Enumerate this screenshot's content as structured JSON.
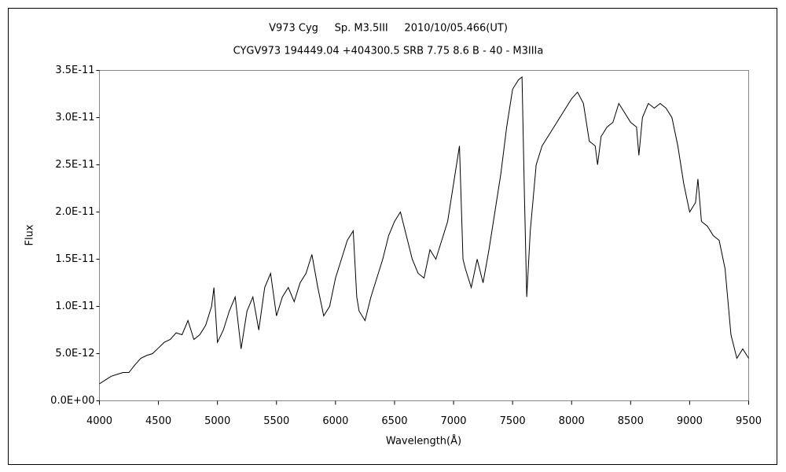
{
  "chart_data": {
    "type": "line",
    "title": "V973 Cyg     Sp. M3.5III     2010/10/05.466(UT)",
    "subtitle": "CYGV973 194449.04 +404300.5 SRB 7.75 8.6 B - 40 - M3IIIa",
    "x_label": "Wavelength(Å)",
    "y_label": "Flux",
    "xlim": [
      4000,
      9500
    ],
    "xticks": [
      4000,
      4500,
      5000,
      5500,
      6000,
      6500,
      7000,
      7500,
      8000,
      8500,
      9000,
      9500
    ],
    "ylim": [
      0,
      3.5e-11
    ],
    "yticks": [
      {
        "value": 0,
        "label": "0.0E+00"
      },
      {
        "value": 5e-12,
        "label": "5.0E-12"
      },
      {
        "value": 1e-11,
        "label": "1.0E-11"
      },
      {
        "value": 1.5e-11,
        "label": "1.5E-11"
      },
      {
        "value": 2e-11,
        "label": "2.0E-11"
      },
      {
        "value": 2.5e-11,
        "label": "2.5E-11"
      },
      {
        "value": 3e-11,
        "label": "3.0E-11"
      },
      {
        "value": 3.5e-11,
        "label": "3.5E-11"
      }
    ],
    "grid": false,
    "series": [
      {
        "color": "#000000",
        "x": [
          4000,
          4050,
          4100,
          4150,
          4200,
          4250,
          4300,
          4350,
          4400,
          4450,
          4500,
          4550,
          4600,
          4650,
          4700,
          4750,
          4800,
          4850,
          4900,
          4950,
          4970,
          5000,
          5050,
          5100,
          5150,
          5200,
          5250,
          5300,
          5350,
          5400,
          5450,
          5500,
          5550,
          5600,
          5650,
          5700,
          5750,
          5800,
          5850,
          5900,
          5950,
          6000,
          6050,
          6100,
          6150,
          6180,
          6200,
          6250,
          6300,
          6350,
          6400,
          6450,
          6500,
          6550,
          6600,
          6650,
          6700,
          6750,
          6800,
          6850,
          6900,
          6950,
          7000,
          7050,
          7080,
          7100,
          7150,
          7200,
          7250,
          7300,
          7350,
          7400,
          7450,
          7500,
          7550,
          7580,
          7600,
          7620,
          7650,
          7700,
          7750,
          7800,
          7850,
          7900,
          7950,
          8000,
          8050,
          8100,
          8150,
          8200,
          8220,
          8250,
          8300,
          8350,
          8400,
          8450,
          8500,
          8550,
          8570,
          8600,
          8650,
          8700,
          8750,
          8800,
          8850,
          8900,
          8950,
          9000,
          9050,
          9070,
          9100,
          9150,
          9200,
          9250,
          9300,
          9350,
          9400,
          9450,
          9500
        ],
        "values": [
          1.8e-12,
          2.2e-12,
          2.6e-12,
          2.8e-12,
          3e-12,
          3e-12,
          3.8e-12,
          4.5e-12,
          4.8e-12,
          5e-12,
          5.6e-12,
          6.2e-12,
          6.5e-12,
          7.2e-12,
          7e-12,
          8.5e-12,
          6.5e-12,
          7e-12,
          8e-12,
          1e-11,
          1.2e-11,
          6.2e-12,
          7.5e-12,
          9.5e-12,
          1.1e-11,
          5.5e-12,
          9.5e-12,
          1.1e-11,
          7.5e-12,
          1.2e-11,
          1.35e-11,
          9e-12,
          1.1e-11,
          1.2e-11,
          1.05e-11,
          1.25e-11,
          1.35e-11,
          1.55e-11,
          1.2e-11,
          9e-12,
          1e-11,
          1.3e-11,
          1.5e-11,
          1.7e-11,
          1.8e-11,
          1.1e-11,
          9.5e-12,
          8.5e-12,
          1.1e-11,
          1.3e-11,
          1.5e-11,
          1.75e-11,
          1.9e-11,
          2e-11,
          1.75e-11,
          1.5e-11,
          1.35e-11,
          1.3e-11,
          1.6e-11,
          1.5e-11,
          1.7e-11,
          1.9e-11,
          2.3e-11,
          2.7e-11,
          1.5e-11,
          1.4e-11,
          1.2e-11,
          1.5e-11,
          1.25e-11,
          1.6e-11,
          2e-11,
          2.4e-11,
          2.9e-11,
          3.3e-11,
          3.4e-11,
          3.43e-11,
          2.2e-11,
          1.1e-11,
          1.8e-11,
          2.5e-11,
          2.7e-11,
          2.8e-11,
          2.9e-11,
          3e-11,
          3.1e-11,
          3.2e-11,
          3.27e-11,
          3.15e-11,
          2.75e-11,
          2.7e-11,
          2.5e-11,
          2.8e-11,
          2.9e-11,
          2.95e-11,
          3.15e-11,
          3.05e-11,
          2.95e-11,
          2.9e-11,
          2.6e-11,
          3e-11,
          3.15e-11,
          3.1e-11,
          3.15e-11,
          3.1e-11,
          3e-11,
          2.7e-11,
          2.3e-11,
          2e-11,
          2.1e-11,
          2.35e-11,
          1.9e-11,
          1.85e-11,
          1.75e-11,
          1.7e-11,
          1.4e-11,
          7e-12,
          4.5e-12,
          5.5e-12,
          4.5e-12
        ]
      }
    ]
  }
}
